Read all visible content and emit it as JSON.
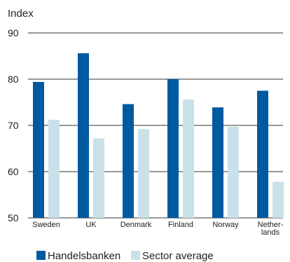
{
  "chart_data": {
    "type": "bar",
    "ylabel": "Index",
    "ylim": [
      50,
      90
    ],
    "yticks": [
      50,
      60,
      70,
      80,
      90
    ],
    "grid": "horizontal",
    "legend": "bottom",
    "categories": [
      [
        "Sweden"
      ],
      [
        "UK"
      ],
      [
        "Denmark"
      ],
      [
        "Finland"
      ],
      [
        "Norway"
      ],
      [
        "Nether-",
        "lands"
      ]
    ],
    "series": [
      {
        "name": "Handelsbanken",
        "color": "#005aa0",
        "values": [
          79.4,
          85.6,
          74.6,
          80.0,
          73.9,
          77.5
        ]
      },
      {
        "name": "Sector average",
        "color": "#c9e1e8",
        "values": [
          71.2,
          67.2,
          69.2,
          75.6,
          69.7,
          57.8
        ]
      }
    ]
  }
}
